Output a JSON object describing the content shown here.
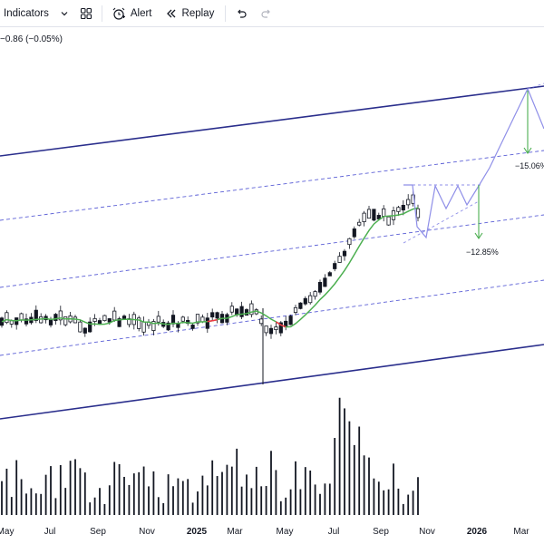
{
  "toolbar": {
    "indicators_label": "Indicators",
    "alert_label": "Alert",
    "replay_label": "Replay",
    "icons": [
      "chevron-down-icon",
      "layout-grid-icon",
      "alarm-clock-icon",
      "replay-icon",
      "undo-icon",
      "redo-icon"
    ]
  },
  "price_change": "−0.86 (−0.05%)",
  "chart_data": {
    "type": "candlestick",
    "x_ticks": [
      "May",
      "Jul",
      "Sep",
      "Nov",
      "2025",
      "Mar",
      "May",
      "Jul",
      "Sep",
      "Nov",
      "2026",
      "Mar"
    ],
    "annotations": [
      "−15.06%",
      "−12.85%"
    ],
    "colors": {
      "up_candle": "#ffffff",
      "down_candle": "#131722",
      "moving_average_up": "#4caf50",
      "moving_average_down": "#f23645",
      "channel": "#2a2e8c",
      "dashed_channel": "#5b5fd6",
      "projection": "#8f8fe8",
      "drop_arrow": "#4caf50",
      "volume": "#131722"
    }
  }
}
